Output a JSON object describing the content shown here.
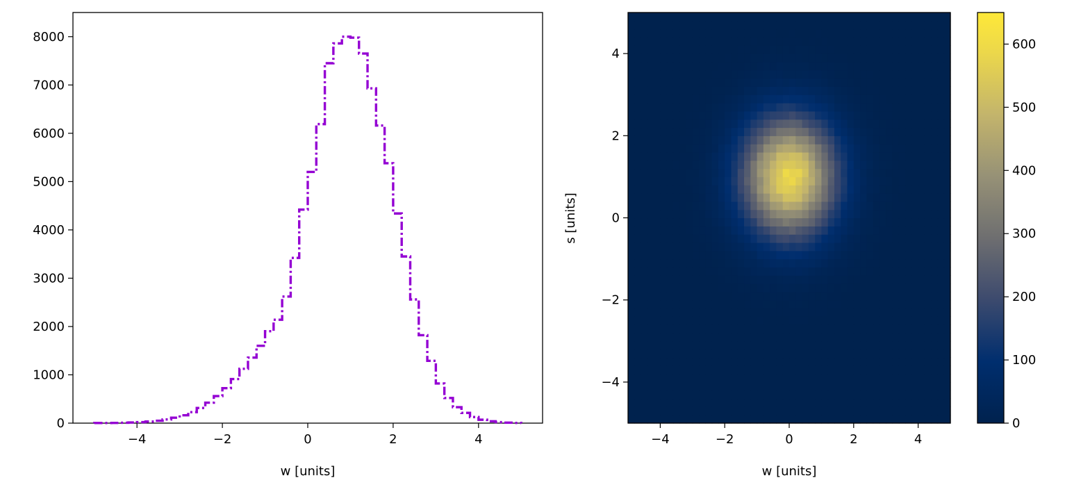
{
  "chart_data": [
    {
      "type": "histogram",
      "histtype": "step",
      "line_style": "dash-dot",
      "color": "#9400D3",
      "xlabel": "w [units]",
      "ylabel": "",
      "xlim": [
        -5.5,
        5.5
      ],
      "ylim": [
        0,
        8500
      ],
      "x_ticks": [
        -4,
        -2,
        0,
        2,
        4
      ],
      "x_tick_labels": [
        "−4",
        "−2",
        "0",
        "2",
        "4"
      ],
      "y_ticks": [
        0,
        1000,
        2000,
        3000,
        4000,
        5000,
        6000,
        7000,
        8000
      ],
      "y_tick_labels": [
        "0",
        "1000",
        "2000",
        "3000",
        "4000",
        "5000",
        "6000",
        "7000",
        "8000"
      ],
      "bin_range": [
        -5,
        5
      ],
      "bin_width": 0.2,
      "values": [
        2,
        3,
        5,
        8,
        13,
        21,
        33,
        50,
        76,
        112,
        162,
        228,
        314,
        424,
        560,
        723,
        912,
        1125,
        1357,
        1601,
        1903,
        2140,
        2620,
        3420,
        4420,
        5200,
        6190,
        7450,
        7860,
        8000,
        7980,
        7650,
        6930,
        6160,
        5380,
        4340,
        3450,
        2560,
        1820,
        1290,
        820,
        520,
        330,
        212,
        126,
        70,
        38,
        20,
        10,
        5
      ],
      "grid": false,
      "legend": "none"
    },
    {
      "type": "heatmap",
      "colormap": "cividis",
      "xlabel": "w [units]",
      "ylabel": "s [units]",
      "xlim": [
        -5,
        5
      ],
      "ylim": [
        -5,
        5
      ],
      "x_ticks": [
        -4,
        -2,
        0,
        2,
        4
      ],
      "x_tick_labels": [
        "−4",
        "−2",
        "0",
        "2",
        "4"
      ],
      "y_ticks": [
        -4,
        -2,
        0,
        2,
        4
      ],
      "y_tick_labels": [
        "−4",
        "−2",
        "0",
        "2",
        "4"
      ],
      "grid_bins": 50,
      "center": [
        0,
        1
      ],
      "sigma": [
        1.0,
        1.0
      ],
      "peak_value": 650,
      "colorbar": {
        "range": [
          0,
          650
        ],
        "ticks": [
          0,
          100,
          200,
          300,
          400,
          500,
          600
        ],
        "tick_labels": [
          "0",
          "100",
          "200",
          "300",
          "400",
          "500",
          "600"
        ]
      }
    }
  ]
}
